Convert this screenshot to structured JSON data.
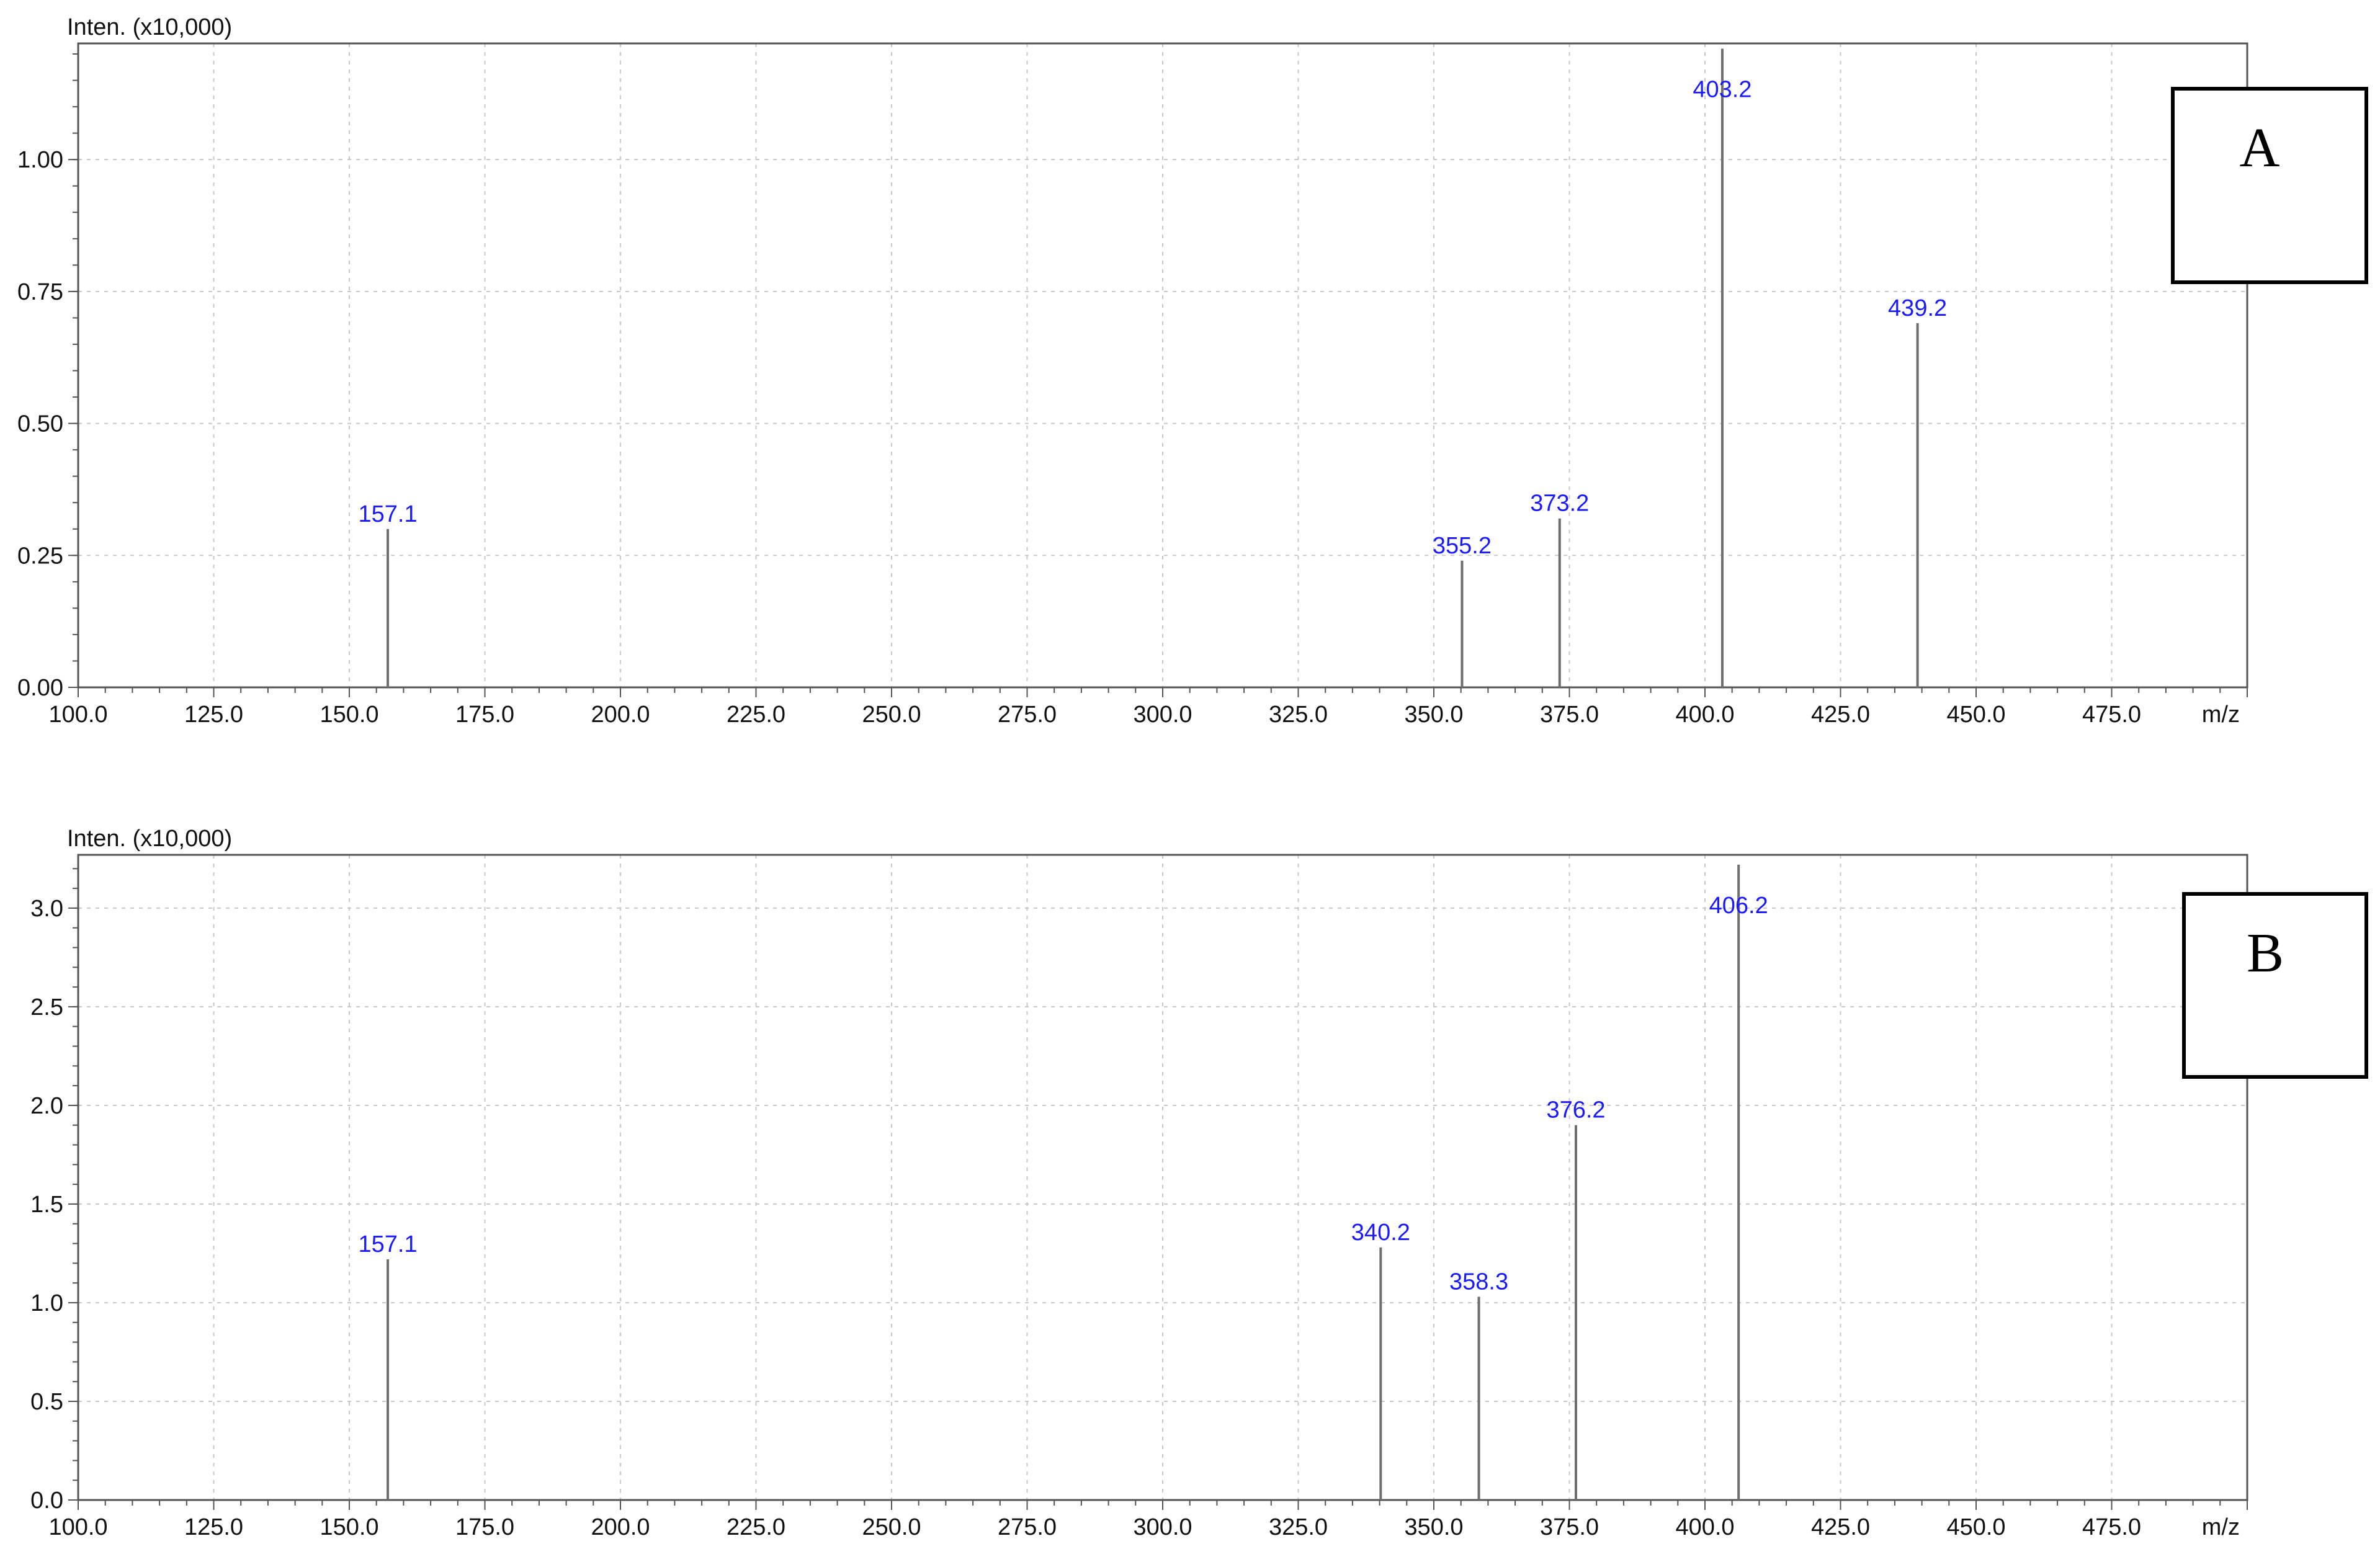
{
  "chart_data": [
    {
      "type": "bar",
      "subtype": "mass-spectrum-stick",
      "panel_label": "A",
      "ylabel": "Inten. (x10,000)",
      "xlabel": "m/z",
      "xlim": [
        100.0,
        500.0
      ],
      "ylim": [
        0.0,
        1.22
      ],
      "x_ticks": [
        "100.0",
        "125.0",
        "150.0",
        "175.0",
        "200.0",
        "225.0",
        "250.0",
        "275.0",
        "300.0",
        "325.0",
        "350.0",
        "375.0",
        "400.0",
        "425.0",
        "450.0",
        "475.0"
      ],
      "x_tick_values": [
        100,
        125,
        150,
        175,
        200,
        225,
        250,
        275,
        300,
        325,
        350,
        375,
        400,
        425,
        450,
        475
      ],
      "y_ticks": [
        "0.00",
        "0.25",
        "0.50",
        "0.75",
        "1.00"
      ],
      "y_tick_values": [
        0.0,
        0.25,
        0.5,
        0.75,
        1.0
      ],
      "grid": true,
      "peaks": [
        {
          "x": 157.1,
          "y": 0.3,
          "label": "157.1"
        },
        {
          "x": 355.2,
          "y": 0.24,
          "label": "355.2"
        },
        {
          "x": 373.2,
          "y": 0.32,
          "label": "373.2"
        },
        {
          "x": 403.2,
          "y": 1.21,
          "label": "403.2"
        },
        {
          "x": 439.2,
          "y": 0.69,
          "label": "439.2"
        }
      ]
    },
    {
      "type": "bar",
      "subtype": "mass-spectrum-stick",
      "panel_label": "B",
      "ylabel": "Inten. (x10,000)",
      "xlabel": "m/z",
      "xlim": [
        100.0,
        500.0
      ],
      "ylim": [
        0.0,
        3.27
      ],
      "x_ticks": [
        "100.0",
        "125.0",
        "150.0",
        "175.0",
        "200.0",
        "225.0",
        "250.0",
        "275.0",
        "300.0",
        "325.0",
        "350.0",
        "375.0",
        "400.0",
        "425.0",
        "450.0",
        "475.0"
      ],
      "x_tick_values": [
        100,
        125,
        150,
        175,
        200,
        225,
        250,
        275,
        300,
        325,
        350,
        375,
        400,
        425,
        450,
        475
      ],
      "y_ticks": [
        "0.0",
        "0.5",
        "1.0",
        "1.5",
        "2.0",
        "2.5",
        "3.0"
      ],
      "y_tick_values": [
        0.0,
        0.5,
        1.0,
        1.5,
        2.0,
        2.5,
        3.0
      ],
      "grid": true,
      "peaks": [
        {
          "x": 157.1,
          "y": 1.22,
          "label": "157.1"
        },
        {
          "x": 340.2,
          "y": 1.28,
          "label": "340.2"
        },
        {
          "x": 358.3,
          "y": 1.03,
          "label": "358.3"
        },
        {
          "x": 376.2,
          "y": 1.9,
          "label": "376.2"
        },
        {
          "x": 406.2,
          "y": 3.22,
          "label": "406.2"
        }
      ]
    }
  ],
  "colors": {
    "peak_line": "#6e6e6e",
    "peak_label": "#1a1aff",
    "grid": "#c8c8c8",
    "axis": "#555555"
  }
}
